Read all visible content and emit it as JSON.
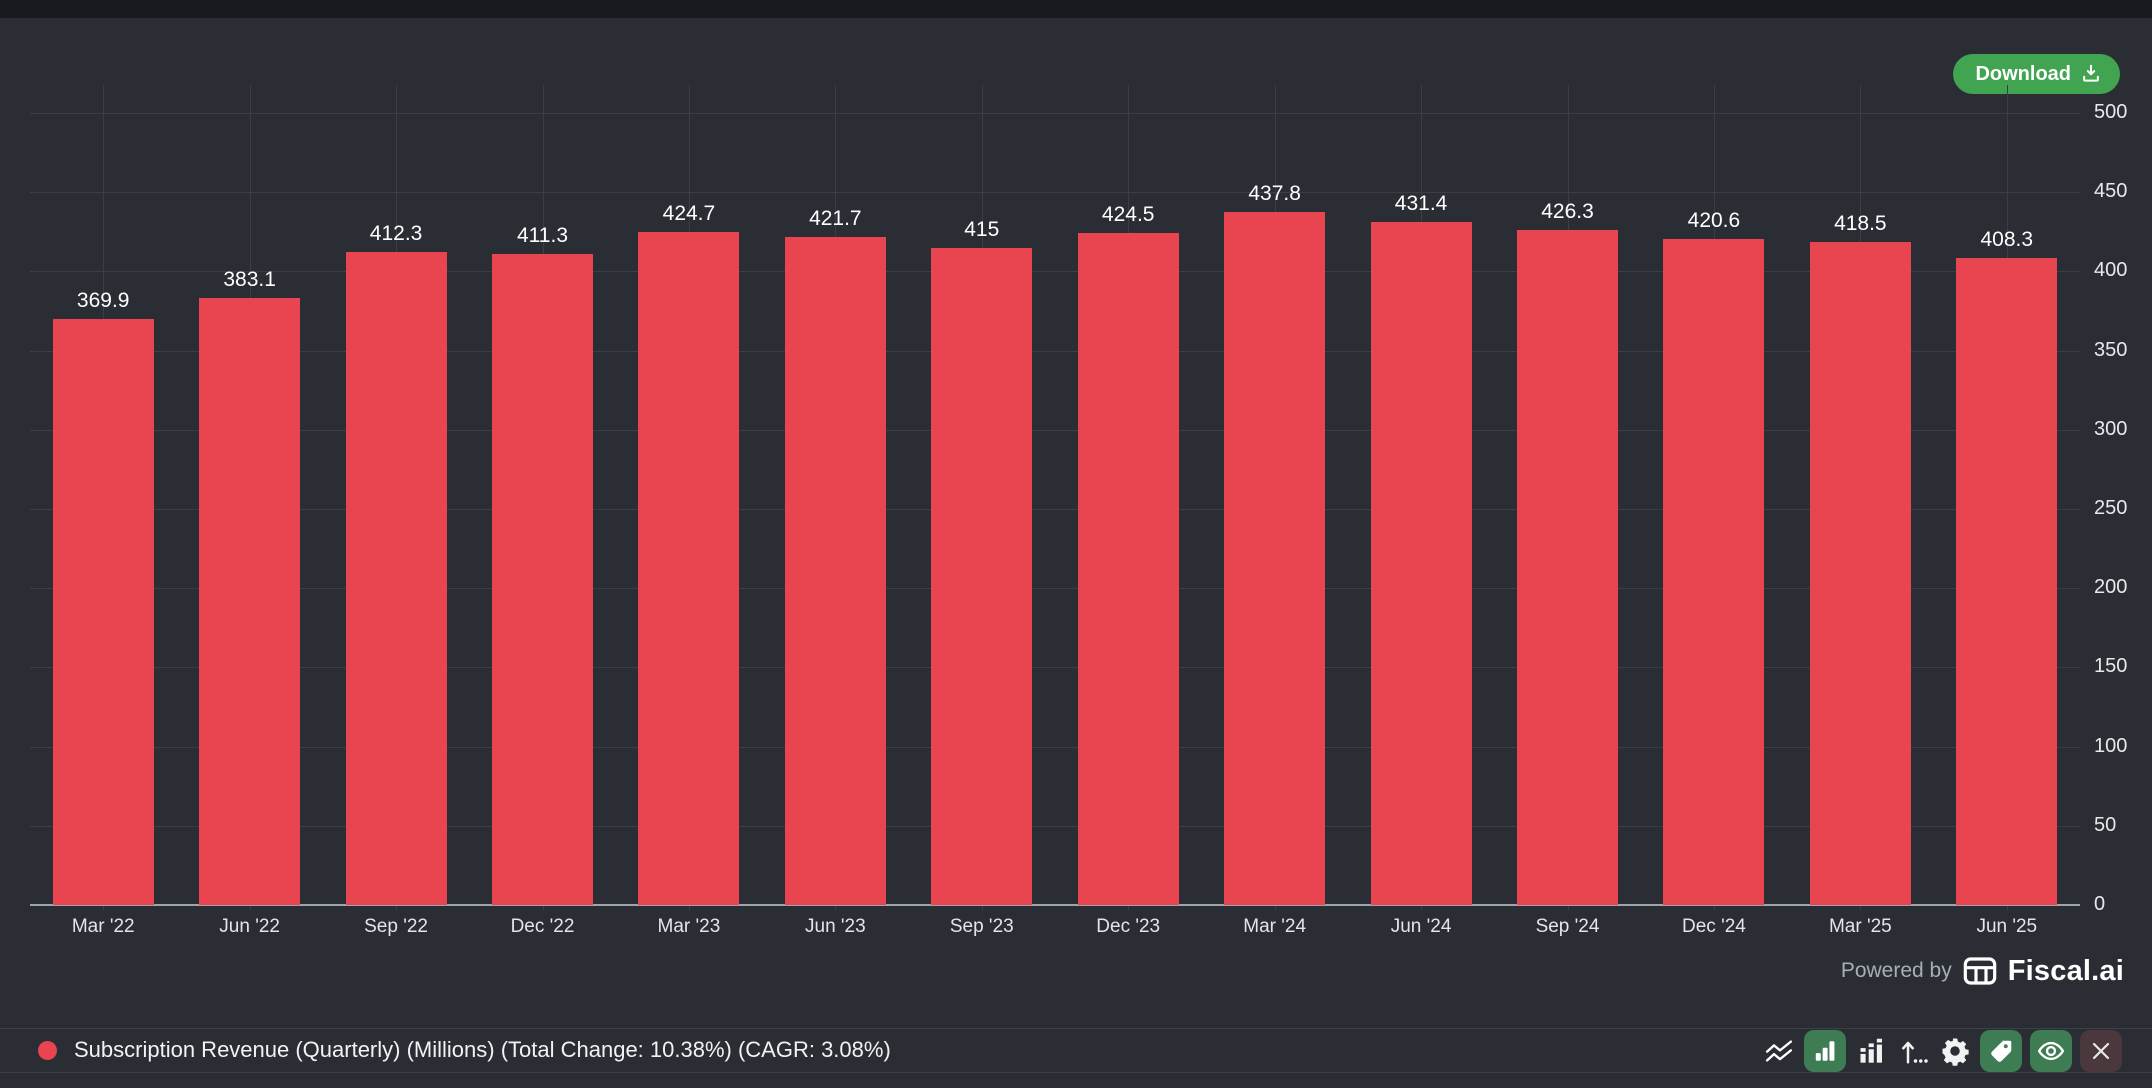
{
  "header": {
    "download_label": "Download"
  },
  "chart_data": {
    "type": "bar",
    "title": "",
    "xlabel": "",
    "ylabel": "",
    "categories": [
      "Mar '22",
      "Jun '22",
      "Sep '22",
      "Dec '22",
      "Mar '23",
      "Jun '23",
      "Sep '23",
      "Dec '23",
      "Mar '24",
      "Jun '24",
      "Sep '24",
      "Dec '24",
      "Mar '25",
      "Jun '25"
    ],
    "values": [
      369.9,
      383.1,
      412.3,
      411.3,
      424.7,
      421.7,
      415,
      424.5,
      437.8,
      431.4,
      426.3,
      420.6,
      418.5,
      408.3
    ],
    "series_name": "Subscription Revenue (Quarterly) (Millions)",
    "ylim": [
      0,
      500
    ],
    "ytick_step": 50,
    "yaxis_side": "right",
    "grid": true,
    "value_labels": true,
    "bar_color": "#E84550"
  },
  "powered_by": {
    "prefix": "Powered by",
    "brand": "Fiscal.ai"
  },
  "legend": {
    "dot_color": "#E84550",
    "label": "Subscription Revenue (Quarterly) (Millions) (Total Change: 10.38%) (CAGR: 3.08%)"
  },
  "toolbar": {
    "icons": [
      "multi-line-chart-icon",
      "bar-chart-icon",
      "grouped-bar-chart-icon",
      "sort-ascending-icon",
      "gear-icon",
      "tag-icon",
      "eye-icon",
      "close-icon"
    ],
    "active_icon": "bar-chart-icon"
  },
  "colors": {
    "background": "#2B2D35",
    "frame": "#191A1F",
    "bar_red": "#E84550",
    "gridline": "#3C3E47",
    "axis_line": "#A0A4AD",
    "download_green": "#41A451",
    "toolbar_green": "#3E7C54",
    "close_button_bg": "#4A383D",
    "divider": "#3E4049"
  }
}
